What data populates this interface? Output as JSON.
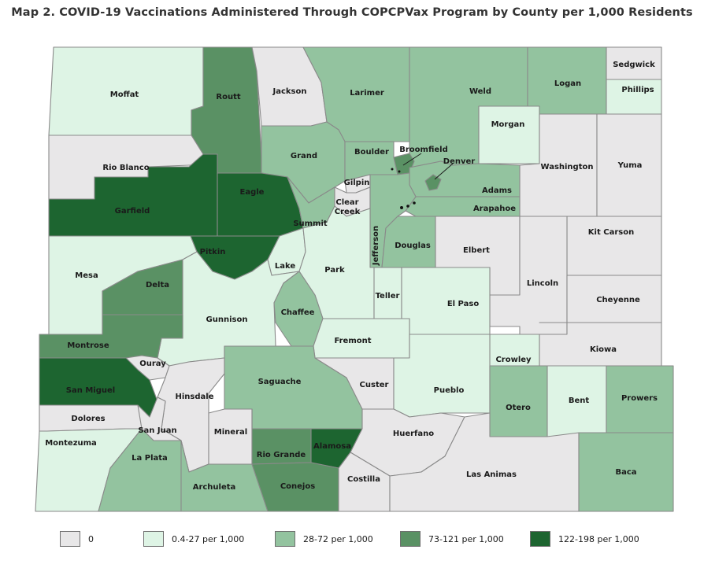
{
  "title": "Map 2. COVID-19 Vaccinations Administered Through COPCPVax Program by County per 1,000 Residents",
  "colors": {
    "c0": "#e8e7e8",
    "c1": "#def4e5",
    "c2": "#93c39f",
    "c3": "#5a9164",
    "c4": "#1d6530"
  },
  "legend": [
    {
      "label": "0",
      "color_key": "c0"
    },
    {
      "label": "0.4-27 per 1,000",
      "color_key": "c1"
    },
    {
      "label": "28-72 per 1,000",
      "color_key": "c2"
    },
    {
      "label": "73-121 per 1,000",
      "color_key": "c3"
    },
    {
      "label": "122-198 per 1,000",
      "color_key": "c4"
    }
  ],
  "counties": {
    "moffat": {
      "name": "Moffat",
      "class": "c1"
    },
    "routt": {
      "name": "Routt",
      "class": "c3"
    },
    "jackson": {
      "name": "Jackson",
      "class": "c0"
    },
    "larimer": {
      "name": "Larimer",
      "class": "c2"
    },
    "weld": {
      "name": "Weld",
      "class": "c2"
    },
    "logan": {
      "name": "Logan",
      "class": "c2"
    },
    "sedgwick": {
      "name": "Sedgwick",
      "class": "c0"
    },
    "phillips": {
      "name": "Phillips",
      "class": "c1"
    },
    "morgan": {
      "name": "Morgan",
      "class": "c1"
    },
    "rio_blanco": {
      "name": "Rio Blanco",
      "class": "c0"
    },
    "grand": {
      "name": "Grand",
      "class": "c2"
    },
    "boulder": {
      "name": "Boulder",
      "class": "c2"
    },
    "broomfield": {
      "name": "Broomfield",
      "class": "c3"
    },
    "denver": {
      "name": "Denver",
      "class": "c3"
    },
    "washington": {
      "name": "Washington",
      "class": "c0"
    },
    "yuma": {
      "name": "Yuma",
      "class": "c0"
    },
    "garfield": {
      "name": "Garfield",
      "class": "c4"
    },
    "eagle": {
      "name": "Eagle",
      "class": "c4"
    },
    "gilpin": {
      "name": "Gilpin",
      "class": "c0"
    },
    "clear_creek": {
      "name": "Clear Creek",
      "class": "c0"
    },
    "adams": {
      "name": "Adams",
      "class": "c2"
    },
    "arapahoe": {
      "name": "Arapahoe",
      "class": "c2"
    },
    "summit": {
      "name": "Summit",
      "class": "c2"
    },
    "jefferson": {
      "name": "Jefferson",
      "class": "c2"
    },
    "douglas": {
      "name": "Douglas",
      "class": "c2"
    },
    "elbert": {
      "name": "Elbert",
      "class": "c0"
    },
    "kit_carson": {
      "name": "Kit Carson",
      "class": "c0"
    },
    "mesa": {
      "name": "Mesa",
      "class": "c1"
    },
    "pitkin": {
      "name": "Pitkin",
      "class": "c4"
    },
    "lake": {
      "name": "Lake",
      "class": "c1"
    },
    "park": {
      "name": "Park",
      "class": "c1"
    },
    "delta": {
      "name": "Delta",
      "class": "c3"
    },
    "lincoln": {
      "name": "Lincoln",
      "class": "c0"
    },
    "teller": {
      "name": "Teller",
      "class": "c1"
    },
    "el_paso": {
      "name": "El Paso",
      "class": "c1"
    },
    "cheyenne": {
      "name": "Cheyenne",
      "class": "c0"
    },
    "gunnison": {
      "name": "Gunnison",
      "class": "c1"
    },
    "chaffee": {
      "name": "Chaffee",
      "class": "c2"
    },
    "montrose": {
      "name": "Montrose",
      "class": "c3"
    },
    "fremont": {
      "name": "Fremont",
      "class": "c1"
    },
    "kiowa": {
      "name": "Kiowa",
      "class": "c0"
    },
    "ouray": {
      "name": "Ouray",
      "class": "c0"
    },
    "crowley": {
      "name": "Crowley",
      "class": "c1"
    },
    "san_miguel": {
      "name": "San Miguel",
      "class": "c4"
    },
    "saguache": {
      "name": "Saguache",
      "class": "c2"
    },
    "custer": {
      "name": "Custer",
      "class": "c0"
    },
    "pueblo": {
      "name": "Pueblo",
      "class": "c1"
    },
    "hinsdale": {
      "name": "Hinsdale",
      "class": "c0"
    },
    "otero": {
      "name": "Otero",
      "class": "c2"
    },
    "bent": {
      "name": "Bent",
      "class": "c1"
    },
    "prowers": {
      "name": "Prowers",
      "class": "c2"
    },
    "dolores": {
      "name": "Dolores",
      "class": "c0"
    },
    "san_juan": {
      "name": "San Juan",
      "class": "c0"
    },
    "mineral": {
      "name": "Mineral",
      "class": "c0"
    },
    "rio_grande": {
      "name": "Rio Grande",
      "class": "c3"
    },
    "alamosa": {
      "name": "Alamosa",
      "class": "c4"
    },
    "huerfano": {
      "name": "Huerfano",
      "class": "c0"
    },
    "montezuma": {
      "name": "Montezuma",
      "class": "c1"
    },
    "la_plata": {
      "name": "La Plata",
      "class": "c2"
    },
    "archuleta": {
      "name": "Archuleta",
      "class": "c2"
    },
    "conejos": {
      "name": "Conejos",
      "class": "c3"
    },
    "costilla": {
      "name": "Costilla",
      "class": "c0"
    },
    "las_animas": {
      "name": "Las Animas",
      "class": "c0"
    },
    "baca": {
      "name": "Baca",
      "class": "c2"
    }
  }
}
